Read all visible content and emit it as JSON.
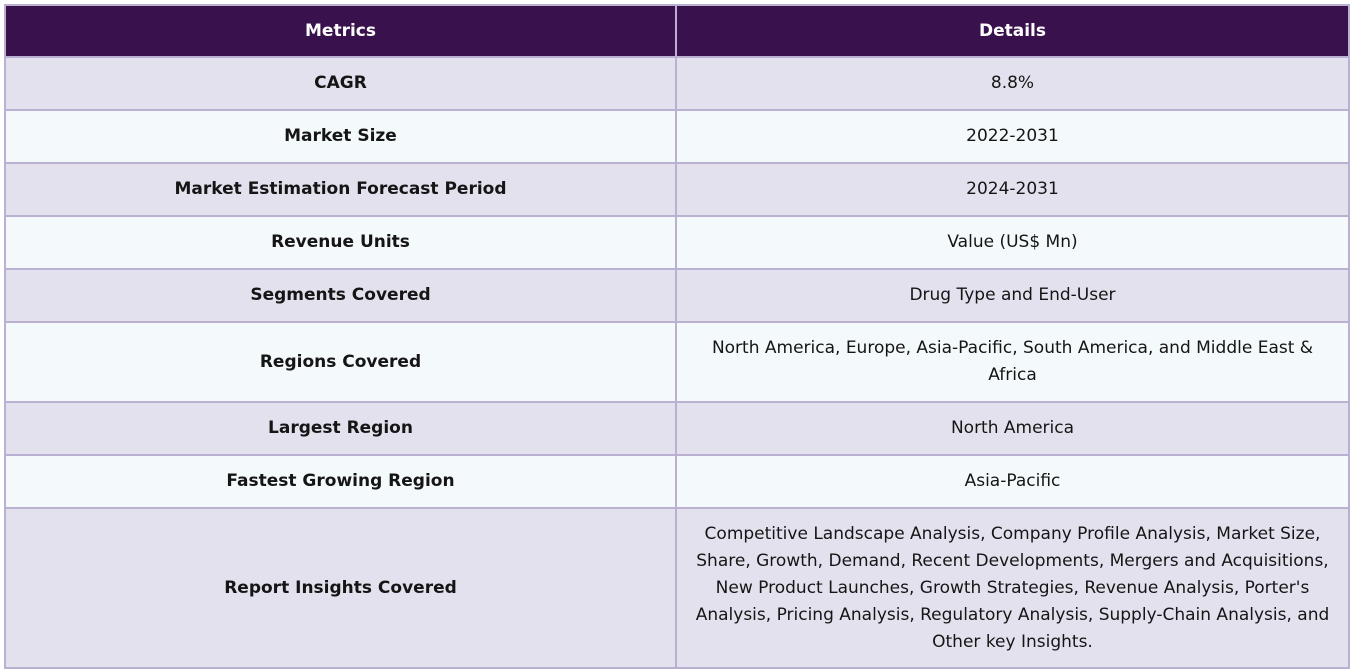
{
  "header": {
    "metrics_label": "Metrics",
    "details_label": "Details"
  },
  "rows": [
    {
      "metric": "CAGR",
      "detail": "8.8%"
    },
    {
      "metric": "Market Size",
      "detail": "2022-2031"
    },
    {
      "metric": "Market Estimation Forecast Period",
      "detail": "2024-2031"
    },
    {
      "metric": "Revenue Units",
      "detail": "Value (US$ Mn)"
    },
    {
      "metric": "Segments Covered",
      "detail": "Drug Type and End-User"
    },
    {
      "metric": "Regions Covered",
      "detail": "North America, Europe, Asia-Pacific, South America, and Middle East & Africa"
    },
    {
      "metric": "Largest Region",
      "detail": "North America"
    },
    {
      "metric": "Fastest Growing Region",
      "detail": "Asia-Pacific"
    },
    {
      "metric": "Report Insights Covered",
      "detail": "Competitive Landscape Analysis, Company Profile Analysis, Market Size, Share, Growth, Demand, Recent Developments, Mergers and Acquisitions, New Product Launches, Growth Strategies, Revenue Analysis, Porter's Analysis, Pricing Analysis, Regulatory Analysis, Supply-Chain Analysis, and Other key Insights."
    }
  ]
}
